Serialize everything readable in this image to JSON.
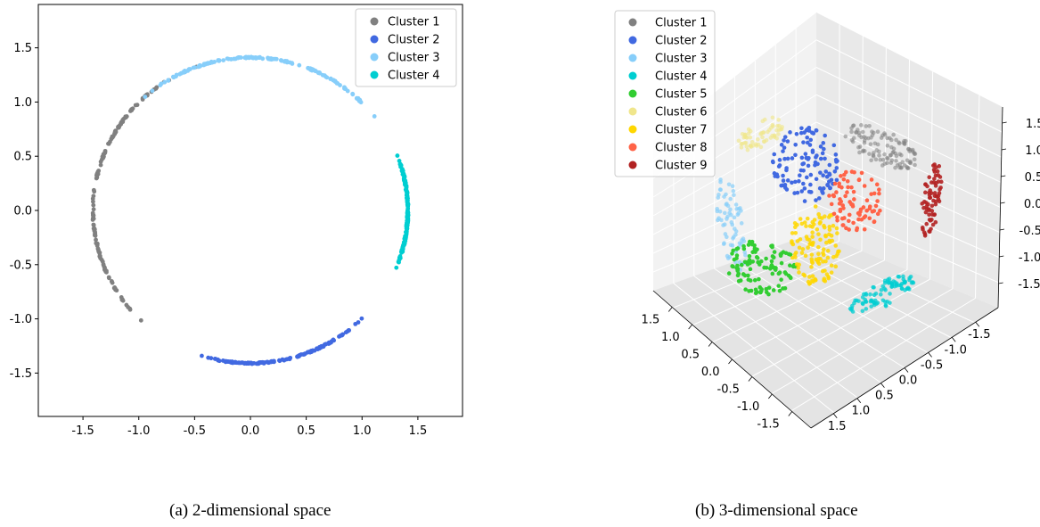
{
  "chart_data": [
    {
      "type": "scatter",
      "caption": "(a) 2-dimensional space",
      "xlim": [
        -1.9,
        1.9
      ],
      "ylim": [
        -1.9,
        1.9
      ],
      "xticks": [
        "-1.5",
        "-1.0",
        "-0.5",
        "0.0",
        "0.5",
        "1.0",
        "1.5"
      ],
      "xtick_values": [
        -1.5,
        -1.0,
        -0.5,
        0.0,
        0.5,
        1.0,
        1.5
      ],
      "yticks": [
        "1.5",
        "1.0",
        "0.5",
        "0.0",
        "-0.5",
        "-1.0",
        "-1.5"
      ],
      "ytick_values": [
        1.5,
        1.0,
        0.5,
        0.0,
        -0.5,
        -1.0,
        -1.5
      ],
      "legend_position": "top-right",
      "grid": false,
      "series": [
        {
          "name": "Cluster 1",
          "color": "#808080",
          "arc_deg": [
            110,
            226
          ],
          "radius": 1.41
        },
        {
          "name": "Cluster 2",
          "color": "#4169E1",
          "arc_deg": [
            252,
            315
          ],
          "radius": 1.41
        },
        {
          "name": "Cluster 3",
          "color": "#87CEFA",
          "arc_deg": [
            38,
            132
          ],
          "radius": 1.41
        },
        {
          "name": "Cluster 4",
          "color": "#00CED1",
          "arc_deg": [
            -22,
            21
          ],
          "radius": 1.41
        }
      ]
    },
    {
      "type": "scatter",
      "caption": "(b) 3-dimensional space",
      "axis_range": [
        -1.8,
        1.8
      ],
      "zticks": [
        "1.5",
        "1.0",
        "0.5",
        "0.0",
        "-0.5",
        "-1.0",
        "-1.5"
      ],
      "left_axis_ticks": [
        "1.5",
        "1.0",
        "0.5",
        "0.0",
        "-0.5",
        "-1.0",
        "-1.5"
      ],
      "right_axis_ticks": [
        "-1.5",
        "-1.0",
        "-0.5",
        "0.0",
        "0.5",
        "1.0",
        "1.5"
      ],
      "legend_position": "top-left",
      "grid": true,
      "series": [
        {
          "name": "Cluster 1",
          "color": "#808080"
        },
        {
          "name": "Cluster 2",
          "color": "#4169E1"
        },
        {
          "name": "Cluster 3",
          "color": "#87CEFA"
        },
        {
          "name": "Cluster 4",
          "color": "#00CED1"
        },
        {
          "name": "Cluster 5",
          "color": "#32CD32"
        },
        {
          "name": "Cluster 6",
          "color": "#F0E68C"
        },
        {
          "name": "Cluster 7",
          "color": "#FFD700"
        },
        {
          "name": "Cluster 8",
          "color": "#FF6347"
        },
        {
          "name": "Cluster 9",
          "color": "#B22222"
        }
      ]
    }
  ]
}
